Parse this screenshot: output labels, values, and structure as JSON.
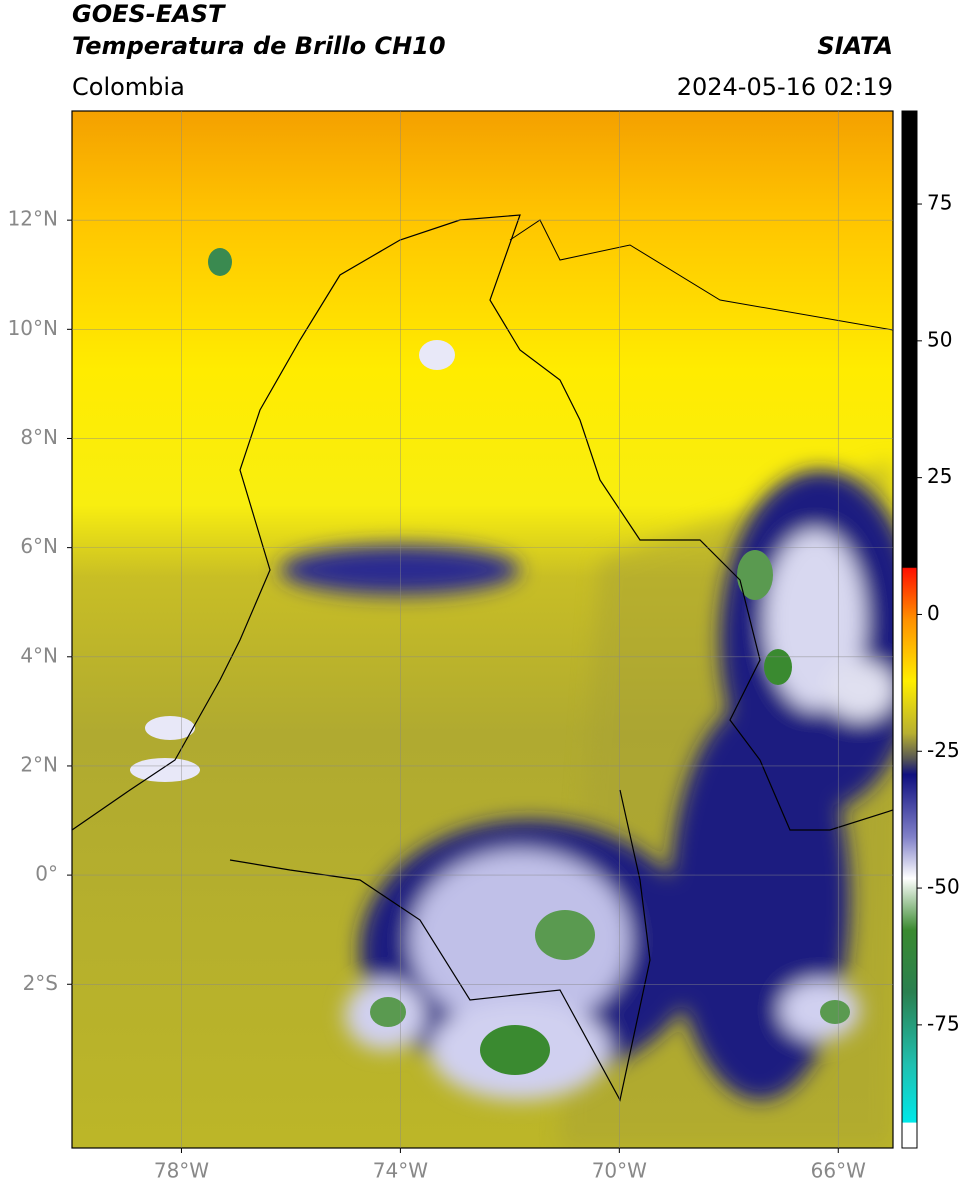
{
  "header": {
    "title_line1": "GOES-EAST",
    "title_line2": "Temperatura de Brillo CH10",
    "region": "Colombia",
    "source": "SIATA",
    "timestamp": "2024-05-16 02:19"
  },
  "map": {
    "xlim": [
      -80,
      -65
    ],
    "ylim": [
      -5,
      14
    ],
    "xticks": [
      {
        "value": -78,
        "label": "78°W"
      },
      {
        "value": -74,
        "label": "74°W"
      },
      {
        "value": -70,
        "label": "70°W"
      },
      {
        "value": -66,
        "label": "66°W"
      }
    ],
    "yticks": [
      {
        "value": 12,
        "label": "12°N"
      },
      {
        "value": 10,
        "label": "10°N"
      },
      {
        "value": 8,
        "label": "8°N"
      },
      {
        "value": 6,
        "label": "6°N"
      },
      {
        "value": 4,
        "label": "4°N"
      },
      {
        "value": 2,
        "label": "2°N"
      },
      {
        "value": 0,
        "label": "0°"
      },
      {
        "value": -2,
        "label": "2°S"
      }
    ],
    "grid": true
  },
  "colorbar": {
    "lim": [
      -97.5,
      92
    ],
    "ticks": [
      75,
      50,
      25,
      0,
      -25,
      -50,
      -75
    ]
  }
}
